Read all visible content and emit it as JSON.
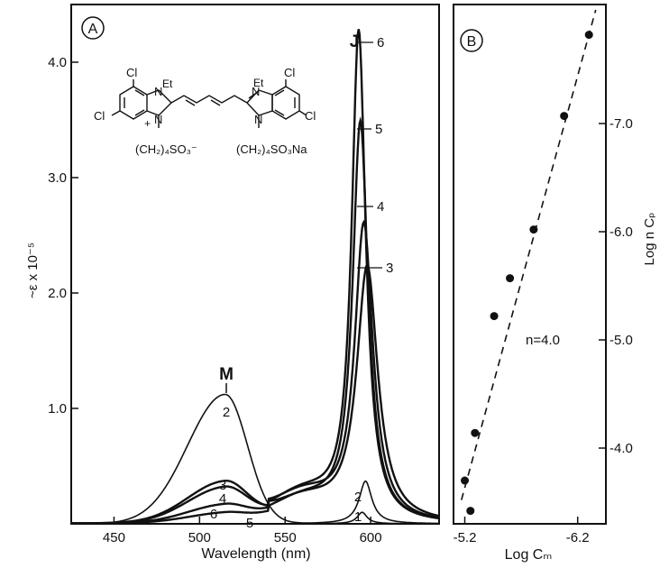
{
  "chart_data": [
    {
      "panel_label": "A",
      "type": "line",
      "xlabel": "Wavelength (nm)",
      "ylabel": "~ε x 10⁻⁵",
      "xlim": [
        425,
        640
      ],
      "ylim": [
        0,
        4.5
      ],
      "xticks": [
        450,
        500,
        550,
        600
      ],
      "yticks": [
        1.0,
        2.0,
        3.0,
        4.0
      ],
      "annotations": [
        "M",
        "J"
      ],
      "structure_labels": {
        "left_cl_top": "Cl",
        "left_cl_side": "Cl",
        "left_et": "Et",
        "left_n_top": "N",
        "left_n_bottom": "N",
        "left_plus": "+",
        "left_chain": "(CH₂)₄SO₃⁻",
        "right_et": "Et",
        "right_n_top": "N",
        "right_n_bottom": "N",
        "right_cl_top": "Cl",
        "right_cl_side": "Cl",
        "right_chain": "(CH₂)₄SO₃Na"
      },
      "series": [
        {
          "name": "1",
          "m_peak": 0.0,
          "j_peak": 0.1
        },
        {
          "name": "2",
          "m_peak": 1.12,
          "j_peak": 0.37
        },
        {
          "name": "3",
          "m_peak": 0.35,
          "j_peak": 2.22
        },
        {
          "name": "4",
          "m_peak": 0.3,
          "j_peak": 2.58
        },
        {
          "name": "5",
          "m_peak": 0.08,
          "j_peak": 3.46
        },
        {
          "name": "6",
          "m_peak": 0.15,
          "j_peak": 4.24
        }
      ],
      "curve_labels": {
        "m_region": [
          "2",
          "3",
          "4",
          "6",
          "5"
        ],
        "j_region": [
          "6",
          "5",
          "4",
          "3",
          "2",
          "1"
        ]
      }
    },
    {
      "panel_label": "B",
      "type": "scatter",
      "xlabel": "Log Cₘ",
      "ylabel": "Log n Cₚ",
      "xlim": [
        -5.1,
        -6.45
      ],
      "ylim": [
        -3.3,
        -8.1
      ],
      "xticks": [
        -5.2,
        -6.2
      ],
      "yticks": [
        -4.0,
        -5.0,
        -6.0,
        -7.0
      ],
      "annotation": "n=4.0",
      "points": [
        {
          "x": -5.2,
          "y": -3.7
        },
        {
          "x": -5.25,
          "y": -3.42
        },
        {
          "x": -5.29,
          "y": -4.14
        },
        {
          "x": -5.46,
          "y": -5.22
        },
        {
          "x": -5.6,
          "y": -5.57
        },
        {
          "x": -5.81,
          "y": -6.02
        },
        {
          "x": -6.08,
          "y": -7.07
        },
        {
          "x": -6.3,
          "y": -7.82
        }
      ],
      "fit_line": {
        "x": [
          -5.17,
          -6.36
        ],
        "y": [
          -3.52,
          -8.05
        ],
        "style": "dashed"
      }
    }
  ]
}
